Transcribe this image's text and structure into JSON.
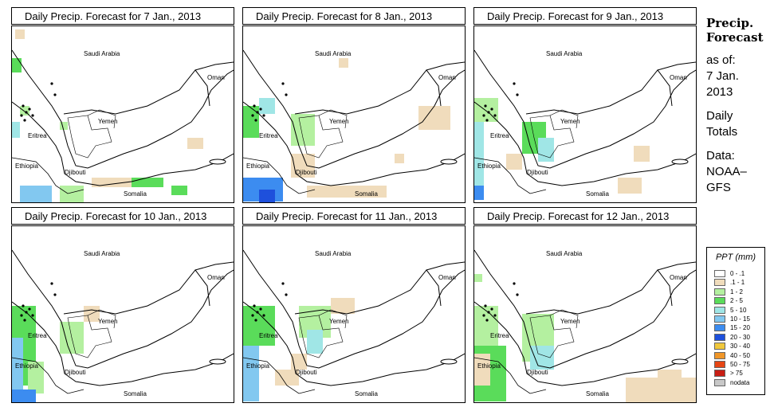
{
  "panels": [
    {
      "title": "Daily Precip. Forecast for  7 Jan., 2013"
    },
    {
      "title": "Daily Precip. Forecast for  8 Jan., 2013"
    },
    {
      "title": "Daily Precip. Forecast for  9 Jan., 2013"
    },
    {
      "title": "Daily Precip. Forecast for  10 Jan., 2013"
    },
    {
      "title": "Daily Precip. Forecast for  11 Jan., 2013"
    },
    {
      "title": "Daily Precip. Forecast for  12 Jan., 2013"
    }
  ],
  "map_labels": {
    "saudi": "Saudi Arabia",
    "oman": "Oman",
    "yemen": "Yemen",
    "eritrea": "Eritrea",
    "ethiopia": "Ethiopia",
    "djibouti": "Djibouti",
    "somalia": "Somalia"
  },
  "sidebar": {
    "title_line1": "Precip.",
    "title_line2": "Forecast",
    "asof": "as of:",
    "date_line1": "7 Jan.",
    "date_line2": "2013",
    "totals_line1": "Daily",
    "totals_line2": "Totals",
    "data_line1": "Data:",
    "data_line2": "NOAA–",
    "data_line3": "GFS"
  },
  "legend": {
    "title": "PPT (mm)",
    "items": [
      {
        "label": "0 - .1",
        "color": "#ffffff"
      },
      {
        "label": ".1 - 1",
        "color": "#f0dcbc"
      },
      {
        "label": "1 - 2",
        "color": "#b4f0a0"
      },
      {
        "label": "2 - 5",
        "color": "#5adc5a"
      },
      {
        "label": "5 - 10",
        "color": "#a0e6e6"
      },
      {
        "label": "10 - 15",
        "color": "#82c8f0"
      },
      {
        "label": "15 - 20",
        "color": "#3c8cf0"
      },
      {
        "label": "20 - 30",
        "color": "#1e50dc"
      },
      {
        "label": "30 - 40",
        "color": "#f0c83c"
      },
      {
        "label": "40 - 50",
        "color": "#f09628"
      },
      {
        "label": "50 - 75",
        "color": "#e64614"
      },
      {
        "label": "> 75",
        "color": "#c81e14"
      },
      {
        "label": "nodata",
        "color": "#c8c8c8"
      }
    ]
  }
}
